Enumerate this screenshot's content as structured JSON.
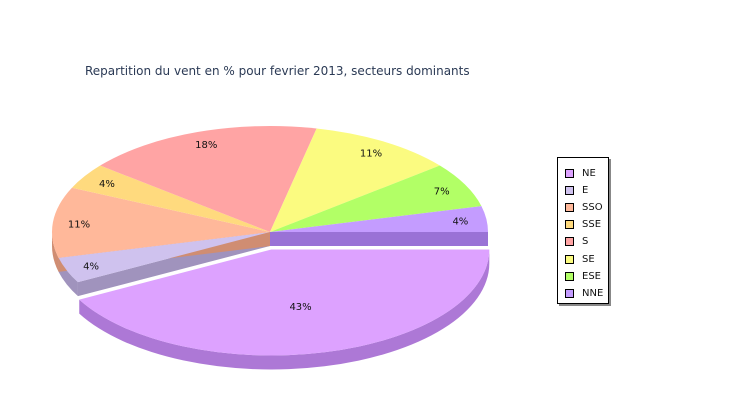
{
  "chart_data": {
    "type": "pie",
    "title": "Repartition du vent en % pour fevrier 2013, secteurs dominants",
    "slices": [
      {
        "label": "NE",
        "value": 43,
        "display": "43%",
        "color": "#dda2ff",
        "side": "#ad78d6",
        "exploded": true
      },
      {
        "label": "E",
        "value": 4,
        "display": "4%",
        "color": "#cfc2ee",
        "side": "#a093bd"
      },
      {
        "label": "SSO",
        "value": 11,
        "display": "11%",
        "color": "#ffb89a",
        "side": "#d08d72"
      },
      {
        "label": "SSE",
        "value": 4,
        "display": "4%",
        "color": "#ffda7e",
        "side": "#cfac58"
      },
      {
        "label": "S",
        "value": 18,
        "display": "18%",
        "color": "#ffa4a4",
        "side": "#d07878"
      },
      {
        "label": "SE",
        "value": 11,
        "display": "11%",
        "color": "#fbfb80",
        "side": "#cbcb57"
      },
      {
        "label": "ESE",
        "value": 7,
        "display": "7%",
        "color": "#b2ff66",
        "side": "#86cf44"
      },
      {
        "label": "NNE",
        "value": 4,
        "display": "4%",
        "color": "#c49cff",
        "side": "#9a72d6"
      }
    ],
    "legend_position": "right"
  }
}
